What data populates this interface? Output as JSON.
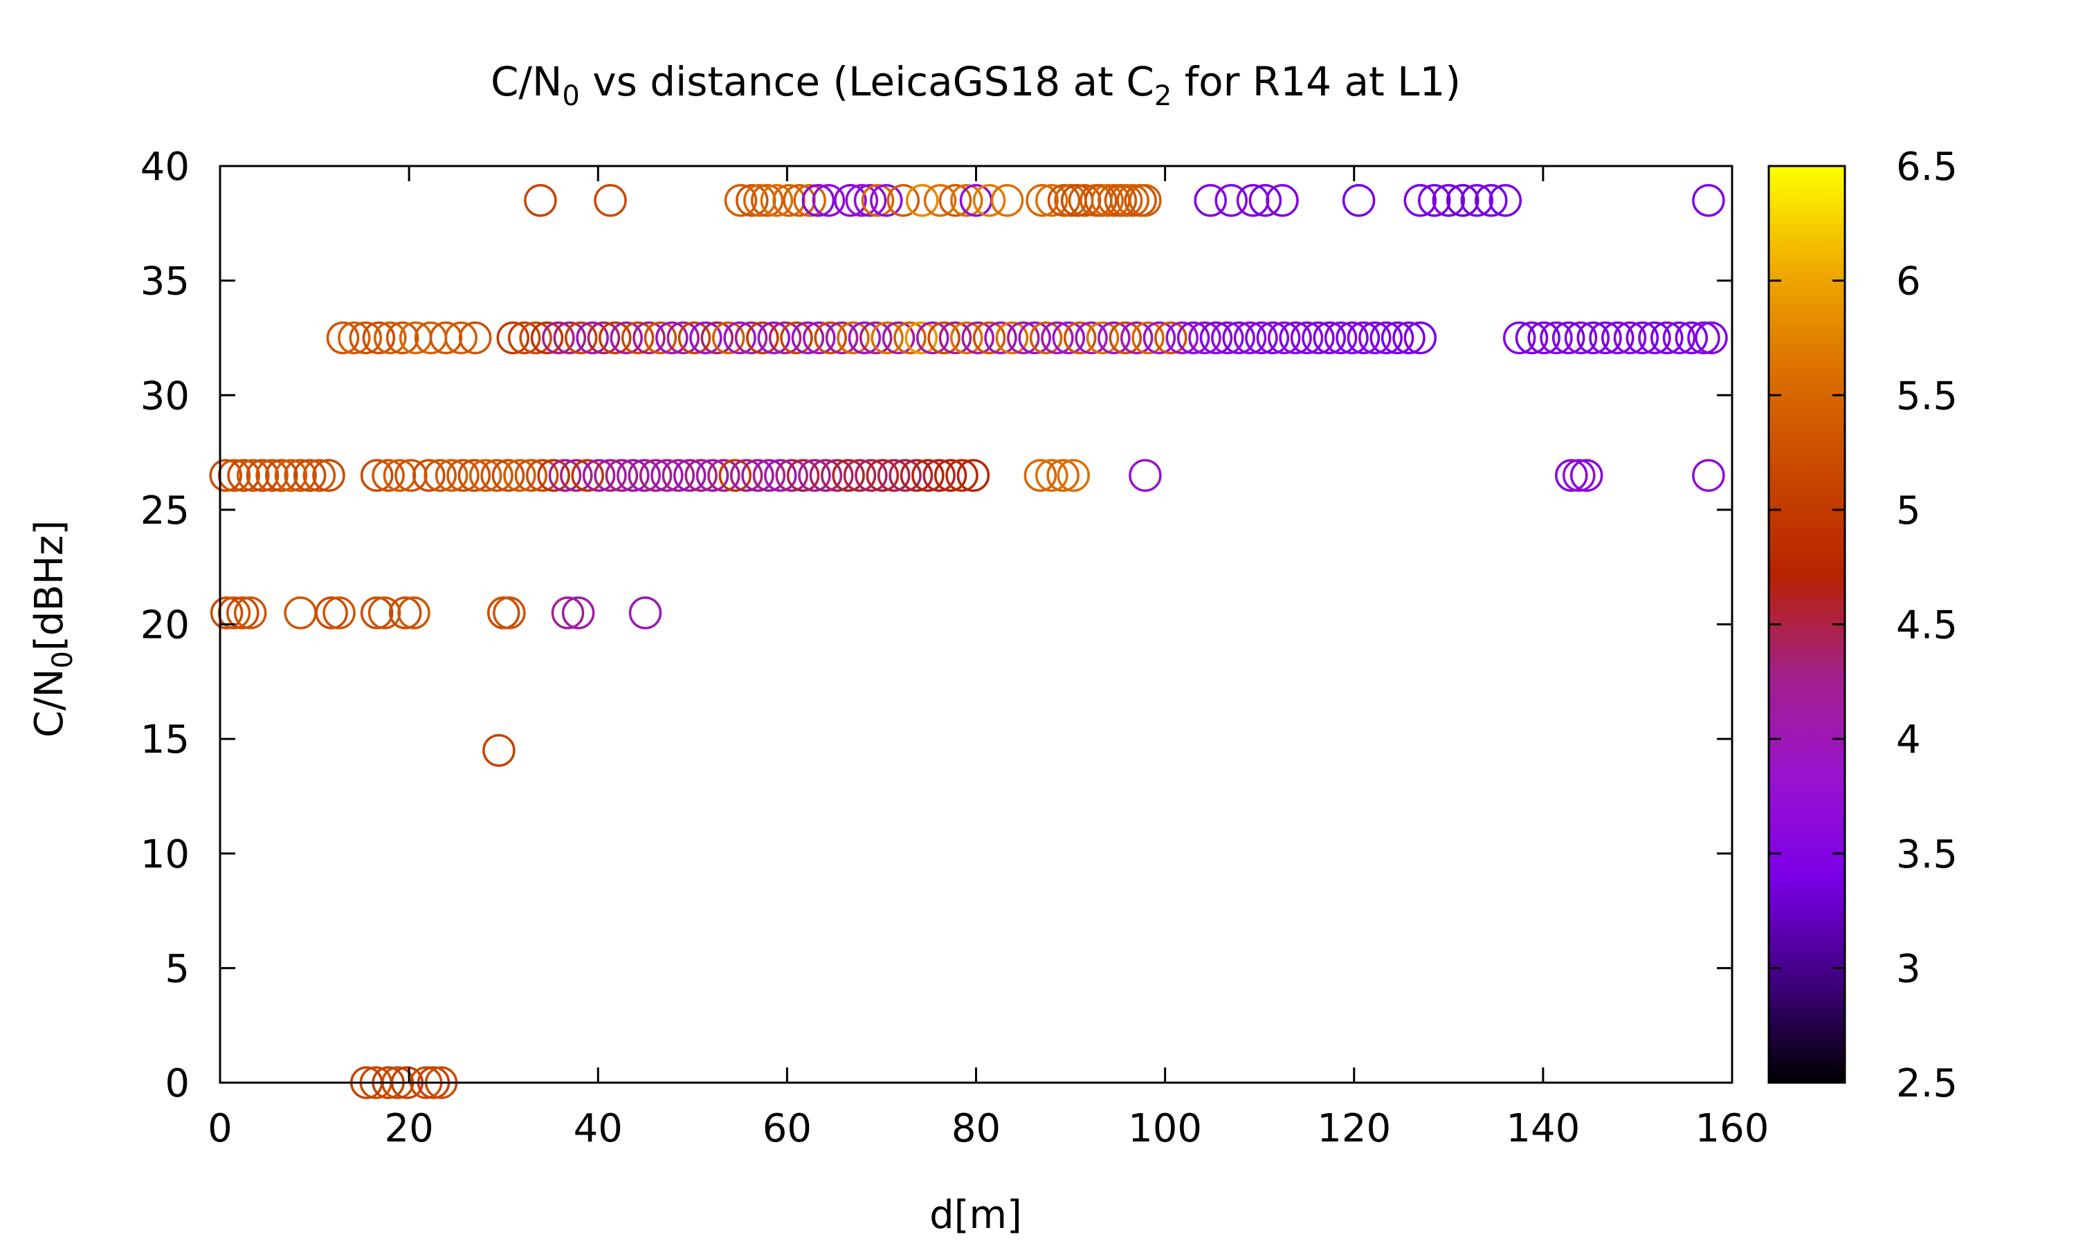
{
  "chart_data": {
    "type": "scatter",
    "title": {
      "main": "C/N",
      "sub1": "0",
      "mid": " vs distance (LeicaGS18 at C",
      "sub2": "2",
      "end": " for R14 at L1)"
    },
    "xlabel": "d[m]",
    "ylabel": {
      "main": "C/N",
      "sub": "0",
      "end": "[dBHz]"
    },
    "xlim": [
      0,
      160
    ],
    "ylim": [
      0,
      40
    ],
    "xticks": [
      "0",
      "20",
      "40",
      "60",
      "80",
      "100",
      "120",
      "140",
      "160"
    ],
    "yticks": [
      "0",
      "5",
      "10",
      "15",
      "20",
      "25",
      "30",
      "35",
      "40"
    ],
    "marker": "open-circle",
    "colorbar": {
      "range": [
        2.5,
        6.5
      ],
      "ticks": [
        "2.5",
        "3",
        "3.5",
        "4",
        "4.5",
        "5",
        "5.5",
        "6",
        "6.5"
      ],
      "palette": "black-purple-red-orange-yellow",
      "colors": [
        "#000000",
        "#40007f",
        "#7a00e6",
        "#9a12d0",
        "#a2208a",
        "#b82300",
        "#c84800",
        "#dc7000",
        "#f0ac00",
        "#ffff00"
      ]
    },
    "series": [
      {
        "y": 38.5,
        "x": [
          33.9,
          41.3,
          55.1,
          56.3,
          57.1,
          57.9,
          58.9,
          60.2,
          61.3,
          62.4,
          63.3,
          64.4,
          66.7,
          67.9,
          68.8,
          69.6,
          70.5,
          72.3,
          74.3,
          76.2,
          77.8,
          79.0,
          80.0,
          81.4,
          83.3,
          87.0,
          88.0,
          89.3,
          90.0,
          90.7,
          91.5,
          92.7,
          93.2,
          93.9,
          94.6,
          95.3,
          95.9,
          96.6,
          97.4,
          97.9,
          104.8,
          107.0,
          109.3,
          110.6,
          112.4,
          120.5,
          127.0,
          128.5,
          130.0,
          131.5,
          133.0,
          134.5,
          136.0,
          157.5
        ],
        "c": [
          5.1,
          5.2,
          5.4,
          5.3,
          5.5,
          5.4,
          5.6,
          5.5,
          5.4,
          5.5,
          3.6,
          3.7,
          3.6,
          3.8,
          3.7,
          5.5,
          3.7,
          5.4,
          5.8,
          5.6,
          5.4,
          5.6,
          3.7,
          5.7,
          5.6,
          5.5,
          5.6,
          5.3,
          5.4,
          5.2,
          5.3,
          5.4,
          5.3,
          5.5,
          5.4,
          5.3,
          5.4,
          5.4,
          5.3,
          5.4,
          3.5,
          3.5,
          3.5,
          3.4,
          3.5,
          3.4,
          3.4,
          3.4,
          3.4,
          3.3,
          3.4,
          3.4,
          3.4,
          3.5
        ]
      },
      {
        "y": 32.5,
        "x": [
          13.0,
          14.2,
          15.4,
          16.8,
          18.0,
          19.3,
          20.7,
          22.3,
          23.9,
          25.5,
          27.0,
          31.0,
          32.2,
          33.4,
          34.6,
          35.8,
          37.0,
          38.2,
          39.4,
          40.6,
          41.8,
          43.0,
          44.2,
          45.4,
          46.6,
          47.8,
          49.0,
          50.2,
          51.4,
          52.6,
          53.8,
          55.0,
          56.2,
          57.4,
          58.6,
          59.8,
          61.0,
          62.2,
          63.4,
          64.6,
          65.8,
          67.0,
          68.2,
          69.4,
          70.6,
          71.8,
          73.0,
          74.2,
          75.4,
          76.6,
          77.8,
          79.0,
          80.2,
          81.4,
          82.6,
          83.8,
          85.0,
          86.2,
          87.4,
          88.6,
          89.8,
          91.0,
          92.2,
          93.4,
          94.6,
          95.8,
          97.0,
          98.2,
          99.4,
          100.6,
          101.8,
          103.0,
          104.2,
          105.4,
          106.6,
          107.8,
          109.0,
          110.2,
          111.4,
          112.6,
          113.8,
          115.0,
          116.2,
          117.4,
          118.6,
          119.8,
          121.0,
          122.2,
          123.4,
          124.6,
          125.8,
          127.0,
          137.5,
          138.8,
          140.1,
          141.4,
          142.7,
          144.0,
          145.3,
          146.6,
          147.9,
          149.2,
          150.5,
          151.8,
          153.1,
          154.4,
          155.7,
          157.0,
          157.8
        ],
        "c": [
          5.3,
          5.4,
          5.3,
          5.2,
          5.4,
          5.3,
          5.5,
          5.4,
          5.3,
          5.4,
          5.3,
          5.0,
          5.1,
          5.2,
          4.9,
          4.2,
          4.3,
          5.1,
          4.0,
          4.4,
          5.0,
          4.1,
          5.2,
          4.3,
          5.3,
          3.9,
          4.2,
          5.1,
          3.8,
          4.4,
          5.4,
          3.9,
          4.2,
          5.0,
          3.8,
          4.3,
          5.1,
          4.0,
          3.9,
          5.2,
          4.2,
          5.5,
          3.9,
          4.3,
          5.6,
          4.1,
          5.4,
          5.9,
          4.0,
          5.2,
          4.3,
          5.6,
          4.1,
          5.3,
          4.0,
          5.6,
          4.2,
          3.9,
          5.4,
          4.1,
          3.8,
          5.3,
          4.0,
          5.6,
          3.9,
          5.2,
          4.1,
          5.5,
          3.8,
          5.3,
          3.9,
          3.6,
          3.7,
          3.5,
          3.6,
          3.5,
          3.6,
          3.5,
          3.5,
          3.6,
          3.5,
          3.5,
          3.5,
          3.4,
          3.5,
          3.5,
          3.4,
          3.5,
          3.4,
          3.4,
          3.4,
          3.4,
          3.5,
          3.4,
          3.4,
          3.5,
          3.4,
          3.5,
          3.4,
          3.4,
          3.4,
          3.5,
          3.4,
          3.4,
          3.4,
          3.5,
          3.4,
          3.5,
          3.5
        ]
      },
      {
        "y": 26.5,
        "x": [
          0.6,
          1.5,
          2.5,
          3.5,
          4.5,
          5.5,
          6.5,
          7.5,
          8.5,
          9.5,
          10.5,
          11.5,
          16.6,
          17.8,
          19.0,
          20.2,
          22.1,
          23.3,
          24.5,
          25.7,
          26.9,
          28.1,
          29.3,
          30.5,
          31.7,
          32.9,
          34.1,
          35.3,
          36.5,
          37.7,
          38.9,
          40.1,
          41.3,
          42.5,
          43.7,
          44.9,
          46.1,
          47.3,
          48.5,
          49.7,
          50.9,
          52.1,
          53.3,
          54.5,
          55.7,
          56.9,
          58.1,
          59.3,
          60.5,
          61.7,
          62.9,
          64.1,
          65.3,
          66.5,
          67.7,
          68.9,
          70.1,
          71.3,
          72.5,
          73.7,
          74.9,
          76.1,
          77.3,
          78.5,
          79.7,
          86.8,
          88.0,
          89.2,
          90.3,
          97.9,
          143.0,
          143.8,
          144.6,
          157.5
        ],
        "c": [
          5.2,
          5.3,
          5.2,
          5.3,
          5.2,
          5.3,
          5.2,
          5.4,
          5.3,
          5.2,
          5.3,
          5.2,
          5.2,
          5.3,
          5.4,
          5.3,
          5.2,
          5.3,
          5.4,
          5.3,
          5.2,
          5.4,
          5.3,
          5.2,
          5.4,
          5.3,
          5.2,
          4.9,
          4.2,
          4.3,
          4.9,
          4.1,
          4.2,
          4.3,
          4.1,
          4.0,
          4.3,
          4.1,
          4.2,
          4.0,
          4.3,
          4.1,
          4.2,
          5.0,
          4.3,
          4.1,
          4.2,
          4.0,
          4.3,
          4.5,
          4.2,
          4.3,
          4.4,
          4.6,
          4.5,
          4.4,
          4.6,
          4.5,
          4.4,
          4.6,
          4.7,
          4.6,
          4.7,
          4.8,
          4.7,
          5.5,
          5.6,
          5.5,
          5.6,
          3.8,
          3.6,
          3.7,
          3.6,
          3.7
        ]
      },
      {
        "y": 20.5,
        "x": [
          0.7,
          1.5,
          2.4,
          3.2,
          8.5,
          11.8,
          12.6,
          16.6,
          17.4,
          19.6,
          20.5,
          30.0,
          30.6,
          36.8,
          37.9,
          45.0
        ],
        "c": [
          5.2,
          5.3,
          5.2,
          5.3,
          5.3,
          5.2,
          5.3,
          5.2,
          5.3,
          5.2,
          5.3,
          5.2,
          5.3,
          4.2,
          4.1,
          4.0
        ]
      },
      {
        "y": 14.5,
        "x": [
          29.5
        ],
        "c": [
          5.1
        ]
      },
      {
        "y": 0.0,
        "x": [
          15.5,
          16.5,
          17.8,
          18.8,
          19.8,
          21.8,
          22.6,
          23.4
        ],
        "c": [
          5.1,
          5.2,
          5.1,
          5.2,
          5.1,
          5.2,
          5.1,
          5.2
        ]
      }
    ]
  }
}
